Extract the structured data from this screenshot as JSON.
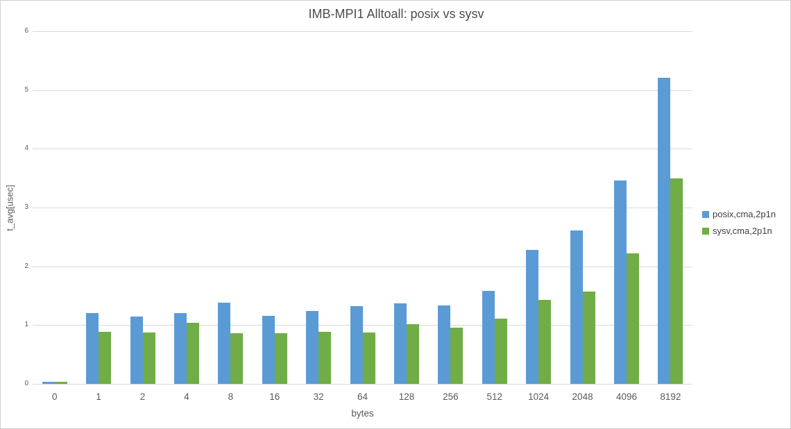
{
  "chart_data": {
    "type": "bar",
    "title": "IMB-MPI1 Alltoall: posix vs sysv",
    "xlabel": "bytes",
    "ylabel": "t_avg[usec]",
    "ylim": [
      0,
      6
    ],
    "yticks": [
      0,
      1,
      2,
      3,
      4,
      5,
      6
    ],
    "grid": true,
    "legend_position": "right",
    "categories": [
      "0",
      "1",
      "2",
      "4",
      "8",
      "16",
      "32",
      "64",
      "128",
      "256",
      "512",
      "1024",
      "2048",
      "4096",
      "8192"
    ],
    "series": [
      {
        "name": "posix,cma,2p1n",
        "color": "#5B9BD5",
        "values": [
          0.04,
          1.2,
          1.15,
          1.21,
          1.38,
          1.16,
          1.24,
          1.32,
          1.37,
          1.34,
          1.58,
          2.28,
          2.61,
          3.46,
          5.21
        ]
      },
      {
        "name": "sysv,cma,2p1n",
        "color": "#70AD47",
        "values": [
          0.04,
          0.89,
          0.87,
          1.04,
          0.86,
          0.86,
          0.89,
          0.88,
          1.02,
          0.96,
          1.11,
          1.43,
          1.57,
          2.22,
          3.5
        ]
      }
    ],
    "colors": {
      "gridline": "#d9d9d9",
      "axis_text": "#595959",
      "title_text": "#4d4d4d"
    }
  }
}
